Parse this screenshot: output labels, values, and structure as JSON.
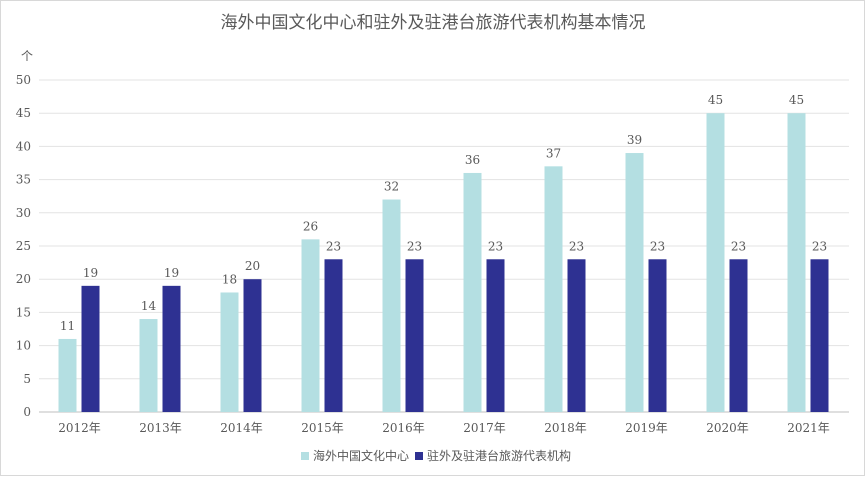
{
  "chart_data": {
    "type": "bar",
    "title": "海外中国文化中心和驻外及驻港台旅游代表机构基本情况",
    "ylabel": "个",
    "xlabel": "",
    "ylim": [
      0,
      50
    ],
    "yticks": [
      0,
      5,
      10,
      15,
      20,
      25,
      30,
      35,
      40,
      45,
      50
    ],
    "grid": true,
    "legend_position": "bottom",
    "categories": [
      "2012年",
      "2013年",
      "2014年",
      "2015年",
      "2016年",
      "2017年",
      "2018年",
      "2019年",
      "2020年",
      "2021年"
    ],
    "series": [
      {
        "name": "海外中国文化中心",
        "color": "#b4dfe2",
        "values": [
          11,
          14,
          18,
          26,
          32,
          36,
          37,
          39,
          45,
          45
        ]
      },
      {
        "name": "驻外及驻港台旅游代表机构",
        "color": "#2e3192",
        "values": [
          19,
          19,
          20,
          23,
          23,
          23,
          23,
          23,
          23,
          23
        ]
      }
    ]
  }
}
